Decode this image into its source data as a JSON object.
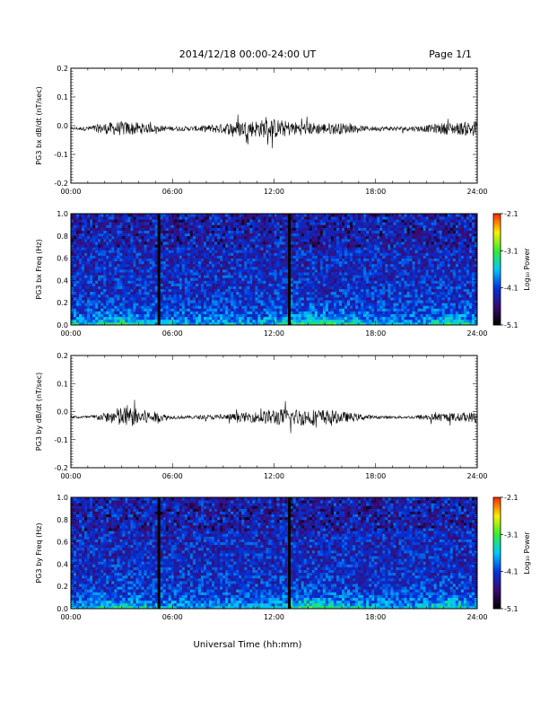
{
  "header": {
    "date_range": "2014/12/18  00:00-24:00 UT",
    "page": "Page 1/1"
  },
  "xlabel": "Universal Time (hh:mm)",
  "colors": {
    "trace": "#000000",
    "colormap": [
      "#000000",
      "#3a0a6e",
      "#0033dd",
      "#00c8ff",
      "#33ee33",
      "#ffee00",
      "#ff2200"
    ]
  },
  "chart_data": [
    {
      "type": "line",
      "ylabel": "PG3 bx dB/dt (nT/sec)",
      "xlim": [
        0,
        24
      ],
      "ylim": [
        -0.2,
        0.2
      ],
      "xticks": [
        "00:00",
        "06:00",
        "12:00",
        "18:00",
        "24:00"
      ],
      "yticks": [
        "-0.2",
        "-0.1",
        "0.0",
        "0.1",
        "0.2"
      ],
      "baseline": -0.01,
      "envelope": {
        "x": [
          0,
          1,
          2,
          3,
          4,
          5,
          6,
          7,
          8,
          9,
          10,
          11,
          12,
          13,
          14,
          15,
          16,
          17,
          18,
          19,
          20,
          21,
          22,
          23,
          24
        ],
        "amplitude": [
          0.004,
          0.008,
          0.02,
          0.025,
          0.022,
          0.012,
          0.008,
          0.008,
          0.012,
          0.018,
          0.028,
          0.03,
          0.035,
          0.025,
          0.022,
          0.02,
          0.02,
          0.01,
          0.008,
          0.008,
          0.008,
          0.012,
          0.02,
          0.022,
          0.03
        ]
      }
    },
    {
      "type": "heatmap",
      "ylabel": "PG3 bx Freq (Hz)",
      "xlim": [
        0,
        24
      ],
      "ylim": [
        0.0,
        1.0
      ],
      "xticks": [
        "00:00",
        "06:00",
        "12:00",
        "18:00",
        "24:00"
      ],
      "yticks": [
        "0.0",
        "0.2",
        "0.4",
        "0.6",
        "0.8",
        "1.0"
      ],
      "colorbar": {
        "label": "Log₁₀ Power",
        "range": [
          -5.1,
          -2.1
        ],
        "ticks": [
          "-2.1",
          "-3.1",
          "-4.1",
          "-5.1"
        ]
      },
      "gaps": [
        5.2,
        12.9
      ]
    },
    {
      "type": "line",
      "ylabel": "PG3 by dB/dt (nT/sec)",
      "xlim": [
        0,
        24
      ],
      "ylim": [
        -0.2,
        0.2
      ],
      "xticks": [
        "00:00",
        "06:00",
        "12:00",
        "18:00",
        "24:00"
      ],
      "yticks": [
        "-0.2",
        "-0.1",
        "0.0",
        "0.1",
        "0.2"
      ],
      "baseline": -0.02,
      "envelope": {
        "x": [
          0,
          1,
          2,
          3,
          4,
          5,
          6,
          7,
          8,
          9,
          10,
          11,
          12,
          13,
          14,
          15,
          16,
          17,
          18,
          19,
          20,
          21,
          22,
          23,
          24
        ],
        "amplitude": [
          0.004,
          0.006,
          0.015,
          0.04,
          0.03,
          0.02,
          0.006,
          0.006,
          0.008,
          0.01,
          0.015,
          0.02,
          0.03,
          0.03,
          0.03,
          0.028,
          0.02,
          0.012,
          0.006,
          0.005,
          0.005,
          0.012,
          0.015,
          0.015,
          0.02
        ]
      }
    },
    {
      "type": "heatmap",
      "ylabel": "PG3 by Freq (Hz)",
      "xlim": [
        0,
        24
      ],
      "ylim": [
        0.0,
        1.0
      ],
      "xticks": [
        "00:00",
        "06:00",
        "12:00",
        "18:00",
        "24:00"
      ],
      "yticks": [
        "0.0",
        "0.2",
        "0.4",
        "0.6",
        "0.8",
        "1.0"
      ],
      "colorbar": {
        "label": "Log₁₀ Power",
        "range": [
          -5.1,
          -2.1
        ],
        "ticks": [
          "-2.1",
          "-3.1",
          "-4.1",
          "-5.1"
        ]
      },
      "gaps": [
        5.2,
        12.9
      ]
    }
  ]
}
